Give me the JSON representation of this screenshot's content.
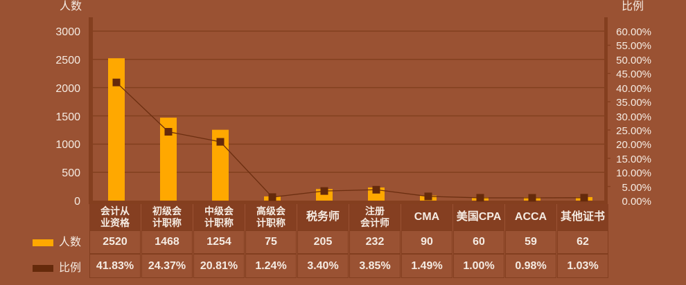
{
  "axes": {
    "left": {
      "title": "人数",
      "ticks": [
        "3000",
        "2500",
        "2000",
        "1500",
        "1000",
        "500",
        "0"
      ]
    },
    "right": {
      "title": "比例",
      "ticks": [
        "60.00%",
        "55.00%",
        "50.00%",
        "45.00%",
        "40.00%",
        "35.00%",
        "30.00%",
        "25.00%",
        "20.00%",
        "15.00%",
        "10.00%",
        "5.00%",
        "0.00%"
      ]
    }
  },
  "legend": [
    {
      "label": "人数",
      "color": "#FFA800",
      "icon": "bar-swatch-icon"
    },
    {
      "label": "比例",
      "color": "#652A0B",
      "icon": "line-marker-swatch-icon"
    }
  ],
  "data_table": {
    "columns": [
      {
        "label_lines": [
          "会计从",
          "业资格"
        ],
        "count": "2520",
        "ratio": "41.83%"
      },
      {
        "label_lines": [
          "初级会",
          "计职称"
        ],
        "count": "1468",
        "ratio": "24.37%"
      },
      {
        "label_lines": [
          "中级会",
          "计职称"
        ],
        "count": "1254",
        "ratio": "20.81%"
      },
      {
        "label_lines": [
          "高级会",
          "计职称"
        ],
        "count": "75",
        "ratio": "1.24%"
      },
      {
        "label_lines": [
          "税务师"
        ],
        "count": "205",
        "ratio": "3.40%"
      },
      {
        "label_lines": [
          "注册",
          "会计师"
        ],
        "count": "232",
        "ratio": "3.85%"
      },
      {
        "label_lines": [
          "CMA"
        ],
        "count": "90",
        "ratio": "1.49%"
      },
      {
        "label_lines": [
          "美国CPA"
        ],
        "count": "60",
        "ratio": "1.00%"
      },
      {
        "label_lines": [
          "ACCA"
        ],
        "count": "59",
        "ratio": "0.98%"
      },
      {
        "label_lines": [
          "其他证书"
        ],
        "count": "62",
        "ratio": "1.03%"
      }
    ]
  },
  "colors": {
    "background": "#9A5233",
    "bar": "#FFA800",
    "line": "#6B2E10",
    "marker": "#652A0B",
    "gridline": "#82401F",
    "axis_frame": "#843F1F",
    "table_header": "#853F21",
    "text": "#F5EBE2"
  },
  "chart_data": {
    "type": "bar",
    "title": "",
    "categories": [
      "会计从业资格",
      "初级会计职称",
      "中级会计职称",
      "高级会计职称",
      "税务师",
      "注册会计师",
      "CMA",
      "美国CPA",
      "ACCA",
      "其他证书"
    ],
    "series": [
      {
        "name": "人数",
        "type": "bar",
        "axis": "left",
        "color": "#FFA800",
        "values": [
          2520,
          1468,
          1254,
          75,
          205,
          232,
          90,
          60,
          59,
          62
        ]
      },
      {
        "name": "比例",
        "type": "line",
        "axis": "right",
        "color": "#652A0B",
        "marker": "square",
        "values": [
          41.83,
          24.37,
          20.81,
          1.24,
          3.4,
          3.85,
          1.49,
          1.0,
          0.98,
          1.03
        ]
      }
    ],
    "xlabel": "",
    "ylabel": "人数",
    "y2label": "比例",
    "ylim": [
      0,
      3000
    ],
    "yticks": [
      0,
      500,
      1000,
      1500,
      2000,
      2500,
      3000
    ],
    "y2lim": [
      0,
      60
    ],
    "y2ticks": [
      0,
      5,
      10,
      15,
      20,
      25,
      30,
      35,
      40,
      45,
      50,
      55,
      60
    ],
    "y2_format": "percent_2dp",
    "grid": {
      "horizontal": true,
      "vertical": false
    },
    "legend_position": "bottom-left (beside data table)",
    "data_table": true
  }
}
